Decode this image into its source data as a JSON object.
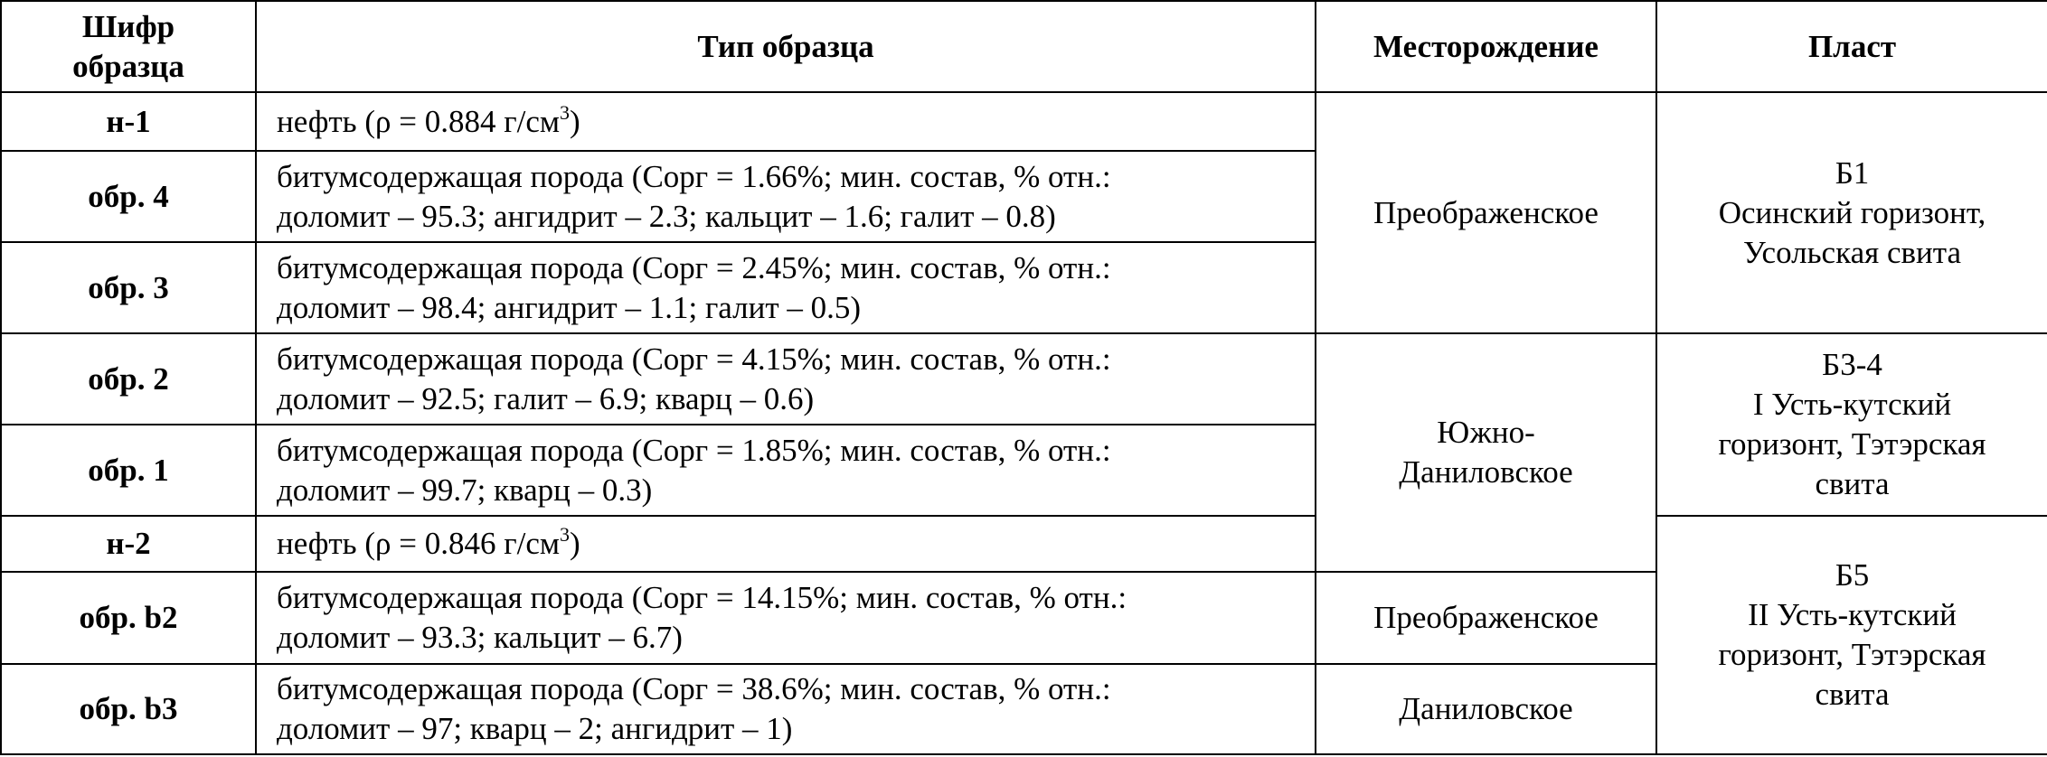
{
  "table": {
    "header": [
      [
        "Шифр",
        "образца"
      ],
      [
        "Тип образца"
      ],
      [
        "Месторождение"
      ],
      [
        "Пласт"
      ]
    ],
    "rows": [
      {
        "code": "н-1",
        "type": {
          "text": "нефть (ρ = 0.884 г/см",
          "sup": "3",
          "end": ")"
        }
      },
      {
        "code": "обр. 4",
        "type": [
          "битумсодержащая порода (Сорг = 1.66%; мин. состав, % отн.:",
          "доломит – 95.3; ангидрит – 2.3; кальцит – 1.6; галит – 0.8)"
        ]
      },
      {
        "code": "обр. 3",
        "type": [
          "битумсодержащая порода (Сорг = 2.45%; мин. состав, % отн.:",
          "доломит – 98.4; ангидрит – 1.1; галит – 0.5)"
        ]
      },
      {
        "code": "обр. 2",
        "type": [
          "битумсодержащая порода (Сорг = 4.15%; мин. состав, % отн.:",
          "доломит – 92.5; галит – 6.9; кварц – 0.6)"
        ]
      },
      {
        "code": "обр. 1",
        "type": [
          "битумсодержащая порода (Сорг = 1.85%; мин. состав, % отн.:",
          "доломит – 99.7; кварц – 0.3)"
        ]
      },
      {
        "code": "н-2",
        "type": {
          "text": "нефть (ρ = 0.846 г/см",
          "sup": "3",
          "end": ")"
        }
      },
      {
        "code": "обр. b2",
        "type": [
          "битумсодержащая порода (Сорг = 14.15%; мин. состав, % отн.:",
          "доломит – 93.3; кальцит – 6.7)"
        ]
      },
      {
        "code": "обр. b3",
        "type": [
          "битумсодержащая порода (Сорг = 38.6%; мин. состав, % отн.:",
          "доломит – 97; кварц – 2; ангидрит – 1)"
        ]
      }
    ],
    "deposits": [
      [
        "Преображенское"
      ],
      [
        "Южно-",
        "Даниловское"
      ],
      [
        "Преображенское"
      ],
      [
        "Даниловское"
      ]
    ],
    "layers": [
      [
        "Б1",
        "Осинский горизонт,",
        "Усольская свита"
      ],
      [
        "Б3-4",
        "I Усть-кутский",
        "горизонт, Тэтэрская",
        "свита"
      ],
      [
        "Б5",
        "II Усть-кутский",
        "горизонт, Тэтэрская",
        "свита"
      ]
    ]
  }
}
